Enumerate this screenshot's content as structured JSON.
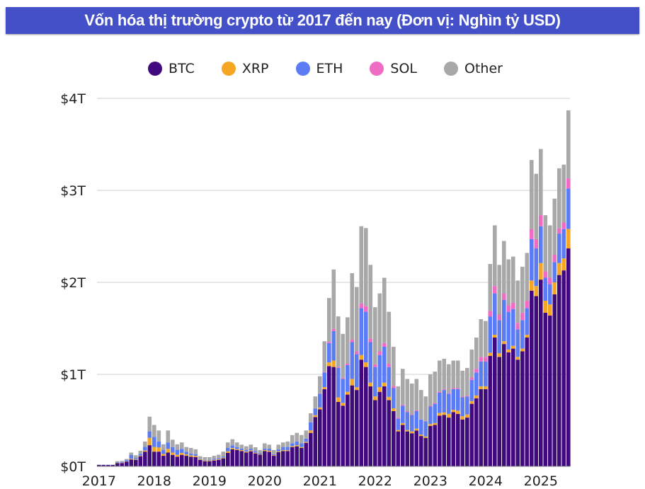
{
  "title": "Vốn hóa thị trường crypto từ 2017 đến nay (Đơn vị: Nghìn tỷ USD)",
  "chart_data": {
    "type": "bar",
    "stacked": true,
    "title": "Vốn hóa thị trường crypto từ 2017 đến nay (Đơn vị: Nghìn tỷ USD)",
    "xlabel": "",
    "ylabel": "",
    "unit": "trillion USD",
    "ylim": [
      0,
      4
    ],
    "yticks": [
      0,
      1,
      2,
      3,
      4
    ],
    "ytick_labels": [
      "$0T",
      "$1T",
      "$2T",
      "$3T",
      "$4T"
    ],
    "xtick_labels": [
      "2017",
      "2018",
      "2019",
      "2020",
      "2021",
      "2022",
      "2023",
      "2024",
      "2025"
    ],
    "x_start": "2017-01",
    "x_end": "2025-07",
    "x_interval": "monthly",
    "grid": "horizontal",
    "legend_position": "top",
    "series": [
      {
        "name": "BTC",
        "color": "#41097e"
      },
      {
        "name": "XRP",
        "color": "#f5a623"
      },
      {
        "name": "ETH",
        "color": "#5b7cf5"
      },
      {
        "name": "SOL",
        "color": "#f06bc4"
      },
      {
        "name": "Other",
        "color": "#a8a8a8"
      }
    ],
    "values_by_month": [
      [
        "2017-01",
        0.015,
        0,
        0.002,
        0,
        0.001
      ],
      [
        "2017-02",
        0.015,
        0,
        0.002,
        0,
        0.001
      ],
      [
        "2017-03",
        0.015,
        0,
        0.002,
        0,
        0.001
      ],
      [
        "2017-04",
        0.015,
        0,
        0.002,
        0,
        0.001
      ],
      [
        "2017-05",
        0.036,
        0.004,
        0.006,
        0,
        0.01
      ],
      [
        "2017-06",
        0.036,
        0.004,
        0.008,
        0,
        0.012
      ],
      [
        "2017-07",
        0.05,
        0.004,
        0.012,
        0,
        0.014
      ],
      [
        "2017-08",
        0.075,
        0.008,
        0.04,
        0,
        0.027
      ],
      [
        "2017-09",
        0.07,
        0.006,
        0.015,
        0,
        0.03
      ],
      [
        "2017-10",
        0.11,
        0.006,
        0.02,
        0,
        0.034
      ],
      [
        "2017-11",
        0.16,
        0.012,
        0.04,
        0,
        0.058
      ],
      [
        "2017-12",
        0.23,
        0.08,
        0.07,
        0,
        0.16
      ],
      [
        "2018-01",
        0.16,
        0.05,
        0.11,
        0,
        0.13
      ],
      [
        "2018-02",
        0.16,
        0.045,
        0.065,
        0,
        0.12
      ],
      [
        "2018-03",
        0.115,
        0.02,
        0.045,
        0,
        0.06
      ],
      [
        "2018-04",
        0.15,
        0.04,
        0.07,
        0,
        0.13
      ],
      [
        "2018-05",
        0.125,
        0.025,
        0.06,
        0,
        0.08
      ],
      [
        "2018-06",
        0.105,
        0.02,
        0.055,
        0,
        0.06
      ],
      [
        "2018-07",
        0.125,
        0.02,
        0.045,
        0,
        0.07
      ],
      [
        "2018-08",
        0.115,
        0.015,
        0.03,
        0,
        0.05
      ],
      [
        "2018-09",
        0.105,
        0.015,
        0.02,
        0,
        0.06
      ],
      [
        "2018-10",
        0.1,
        0.013,
        0.02,
        0,
        0.052
      ],
      [
        "2018-11",
        0.07,
        0.008,
        0.005,
        0,
        0.027
      ],
      [
        "2018-12",
        0.056,
        0.008,
        0.006,
        0,
        0.03
      ],
      [
        "2019-01",
        0.056,
        0.007,
        0.006,
        0,
        0.031
      ],
      [
        "2019-02",
        0.064,
        0.007,
        0.01,
        0,
        0.034
      ],
      [
        "2019-03",
        0.07,
        0.007,
        0.01,
        0,
        0.039
      ],
      [
        "2019-04",
        0.087,
        0.007,
        0.013,
        0,
        0.053
      ],
      [
        "2019-05",
        0.146,
        0.018,
        0.036,
        0,
        0.06
      ],
      [
        "2019-06",
        0.185,
        0.013,
        0.03,
        0,
        0.067
      ],
      [
        "2019-07",
        0.177,
        0.01,
        0.023,
        0,
        0.05
      ],
      [
        "2019-08",
        0.167,
        0.01,
        0.016,
        0,
        0.043
      ],
      [
        "2019-09",
        0.15,
        0.01,
        0.016,
        0,
        0.042
      ],
      [
        "2019-10",
        0.164,
        0.01,
        0.018,
        0,
        0.044
      ],
      [
        "2019-11",
        0.141,
        0.008,
        0.018,
        0,
        0.041
      ],
      [
        "2019-12",
        0.128,
        0.007,
        0.011,
        0,
        0.031
      ],
      [
        "2020-01",
        0.167,
        0.01,
        0.016,
        0,
        0.057
      ],
      [
        "2020-02",
        0.159,
        0.01,
        0.023,
        0,
        0.044
      ],
      [
        "2020-03",
        0.115,
        0.007,
        0.011,
        0,
        0.044
      ],
      [
        "2020-04",
        0.154,
        0.008,
        0.022,
        0,
        0.052
      ],
      [
        "2020-05",
        0.167,
        0.009,
        0.035,
        0,
        0.049
      ],
      [
        "2020-06",
        0.167,
        0.009,
        0.035,
        0,
        0.059
      ],
      [
        "2020-07",
        0.21,
        0.01,
        0.03,
        0.001,
        0.089
      ],
      [
        "2020-08",
        0.218,
        0.012,
        0.04,
        0.002,
        0.092
      ],
      [
        "2020-09",
        0.2,
        0.01,
        0.04,
        0.002,
        0.088
      ],
      [
        "2020-10",
        0.256,
        0.01,
        0.034,
        0.002,
        0.088
      ],
      [
        "2020-11",
        0.364,
        0.026,
        0.09,
        0.002,
        0.095
      ],
      [
        "2020-12",
        0.536,
        0.02,
        0.074,
        0.002,
        0.128
      ],
      [
        "2021-01",
        0.62,
        0.02,
        0.15,
        0.003,
        0.187
      ],
      [
        "2021-02",
        0.84,
        0.02,
        0.16,
        0.005,
        0.335
      ],
      [
        "2021-03",
        1.09,
        0.04,
        0.21,
        0.015,
        0.475
      ],
      [
        "2021-04",
        1.08,
        0.07,
        0.32,
        0.025,
        0.645
      ],
      [
        "2021-05",
        0.7,
        0.05,
        0.32,
        0.01,
        0.55
      ],
      [
        "2021-06",
        0.66,
        0.03,
        0.26,
        0.01,
        0.48
      ],
      [
        "2021-07",
        0.78,
        0.03,
        0.29,
        0.015,
        0.505
      ],
      [
        "2021-08",
        0.88,
        0.07,
        0.4,
        0.03,
        0.72
      ],
      [
        "2021-09",
        0.83,
        0.03,
        0.36,
        0.03,
        0.7
      ],
      [
        "2021-10",
        1.16,
        0.05,
        0.51,
        0.05,
        0.84
      ],
      [
        "2021-11",
        1.08,
        0.05,
        0.55,
        0.06,
        0.85
      ],
      [
        "2021-12",
        0.87,
        0.04,
        0.44,
        0.04,
        0.8
      ],
      [
        "2022-01",
        0.72,
        0.04,
        0.32,
        0.03,
        0.62
      ],
      [
        "2022-02",
        0.81,
        0.05,
        0.35,
        0.04,
        0.63
      ],
      [
        "2022-03",
        0.87,
        0.04,
        0.39,
        0.04,
        0.71
      ],
      [
        "2022-04",
        0.72,
        0.035,
        0.325,
        0.035,
        0.565
      ],
      [
        "2022-05",
        0.6,
        0.03,
        0.22,
        0.025,
        0.425
      ],
      [
        "2022-06",
        0.38,
        0.015,
        0.125,
        0.01,
        0.34
      ],
      [
        "2022-07",
        0.45,
        0.02,
        0.19,
        0.01,
        0.39
      ],
      [
        "2022-08",
        0.38,
        0.015,
        0.195,
        0.01,
        0.35
      ],
      [
        "2022-09",
        0.36,
        0.02,
        0.18,
        0.008,
        0.332
      ],
      [
        "2022-10",
        0.39,
        0.02,
        0.19,
        0.008,
        0.342
      ],
      [
        "2022-11",
        0.33,
        0.015,
        0.165,
        0.003,
        0.317
      ],
      [
        "2022-12",
        0.31,
        0.015,
        0.165,
        0.003,
        0.267
      ],
      [
        "2023-01",
        0.44,
        0.02,
        0.19,
        0.008,
        0.342
      ],
      [
        "2023-02",
        0.45,
        0.02,
        0.21,
        0.008,
        0.342
      ],
      [
        "2023-03",
        0.55,
        0.03,
        0.22,
        0.01,
        0.34
      ],
      [
        "2023-04",
        0.56,
        0.025,
        0.245,
        0.01,
        0.33
      ],
      [
        "2023-05",
        0.53,
        0.04,
        0.22,
        0.008,
        0.312
      ],
      [
        "2023-06",
        0.59,
        0.025,
        0.225,
        0.01,
        0.3
      ],
      [
        "2023-07",
        0.57,
        0.035,
        0.235,
        0.01,
        0.3
      ],
      [
        "2023-08",
        0.51,
        0.035,
        0.205,
        0.008,
        0.282
      ],
      [
        "2023-09",
        0.53,
        0.035,
        0.195,
        0.008,
        0.302
      ],
      [
        "2023-10",
        0.68,
        0.03,
        0.23,
        0.025,
        0.305
      ],
      [
        "2023-11",
        0.74,
        0.03,
        0.25,
        0.04,
        0.34
      ],
      [
        "2023-12",
        0.84,
        0.03,
        0.27,
        0.05,
        0.41
      ],
      [
        "2024-01",
        0.84,
        0.03,
        0.27,
        0.05,
        0.39
      ],
      [
        "2024-02",
        1.2,
        0.035,
        0.395,
        0.06,
        0.51
      ],
      [
        "2024-03",
        1.4,
        0.03,
        0.45,
        0.08,
        0.66
      ],
      [
        "2024-04",
        1.19,
        0.04,
        0.36,
        0.06,
        0.54
      ],
      [
        "2024-05",
        1.33,
        0.03,
        0.45,
        0.07,
        0.57
      ],
      [
        "2024-06",
        1.24,
        0.03,
        0.41,
        0.07,
        0.5
      ],
      [
        "2024-07",
        1.28,
        0.03,
        0.4,
        0.07,
        0.5
      ],
      [
        "2024-08",
        1.16,
        0.03,
        0.3,
        0.07,
        0.46
      ],
      [
        "2024-09",
        1.25,
        0.03,
        0.31,
        0.08,
        0.5
      ],
      [
        "2024-10",
        1.4,
        0.03,
        0.29,
        0.08,
        0.52
      ],
      [
        "2024-11",
        1.91,
        0.11,
        0.45,
        0.11,
        0.75
      ],
      [
        "2024-12",
        1.85,
        0.11,
        0.41,
        0.1,
        0.71
      ],
      [
        "2025-01",
        2.03,
        0.18,
        0.4,
        0.12,
        0.72
      ],
      [
        "2025-02",
        1.67,
        0.13,
        0.25,
        0.07,
        0.61
      ],
      [
        "2025-03",
        1.64,
        0.12,
        0.22,
        0.07,
        0.57
      ],
      [
        "2025-04",
        1.87,
        0.13,
        0.22,
        0.08,
        0.61
      ],
      [
        "2025-05",
        2.08,
        0.13,
        0.32,
        0.06,
        0.65
      ],
      [
        "2025-06",
        2.13,
        0.13,
        0.32,
        0.07,
        0.63
      ],
      [
        "2025-07",
        2.37,
        0.21,
        0.44,
        0.11,
        0.74
      ]
    ]
  }
}
